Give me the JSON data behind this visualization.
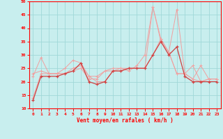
{
  "xlabel": "Vent moyen/en rafales ( km/h )",
  "xlim": [
    -0.5,
    23.5
  ],
  "ylim": [
    10,
    50
  ],
  "yticks": [
    10,
    15,
    20,
    25,
    30,
    35,
    40,
    45,
    50
  ],
  "xticks": [
    0,
    1,
    2,
    3,
    4,
    5,
    6,
    7,
    8,
    9,
    10,
    11,
    12,
    13,
    14,
    15,
    16,
    17,
    18,
    19,
    20,
    21,
    22,
    23
  ],
  "background_color": "#c8eeee",
  "grid_color": "#a0d8d8",
  "line_color_light": "#f0a0a0",
  "line_color_dark": "#d04040",
  "series_avg": [
    13,
    22,
    22,
    22,
    23,
    24,
    27,
    20,
    19,
    20,
    24,
    24,
    25,
    25,
    25,
    30,
    35,
    30,
    33,
    22,
    20,
    20,
    20,
    20
  ],
  "series_gust1": [
    22,
    29,
    23,
    23,
    25,
    28,
    27,
    22,
    20,
    20,
    24,
    25,
    24,
    26,
    30,
    48,
    35,
    31,
    23,
    23,
    26,
    20,
    21,
    21
  ],
  "series_trend": [
    23,
    24,
    23,
    23,
    23,
    25,
    26,
    22,
    22,
    24,
    25,
    25,
    25,
    25,
    25,
    30,
    36,
    31,
    23,
    23,
    21,
    20,
    21,
    21
  ],
  "series_gust2": [
    14,
    23,
    23,
    23,
    23,
    24,
    25,
    21,
    21,
    24,
    24,
    24,
    25,
    25,
    25,
    48,
    36,
    31,
    47,
    23,
    21,
    26,
    21,
    21
  ]
}
